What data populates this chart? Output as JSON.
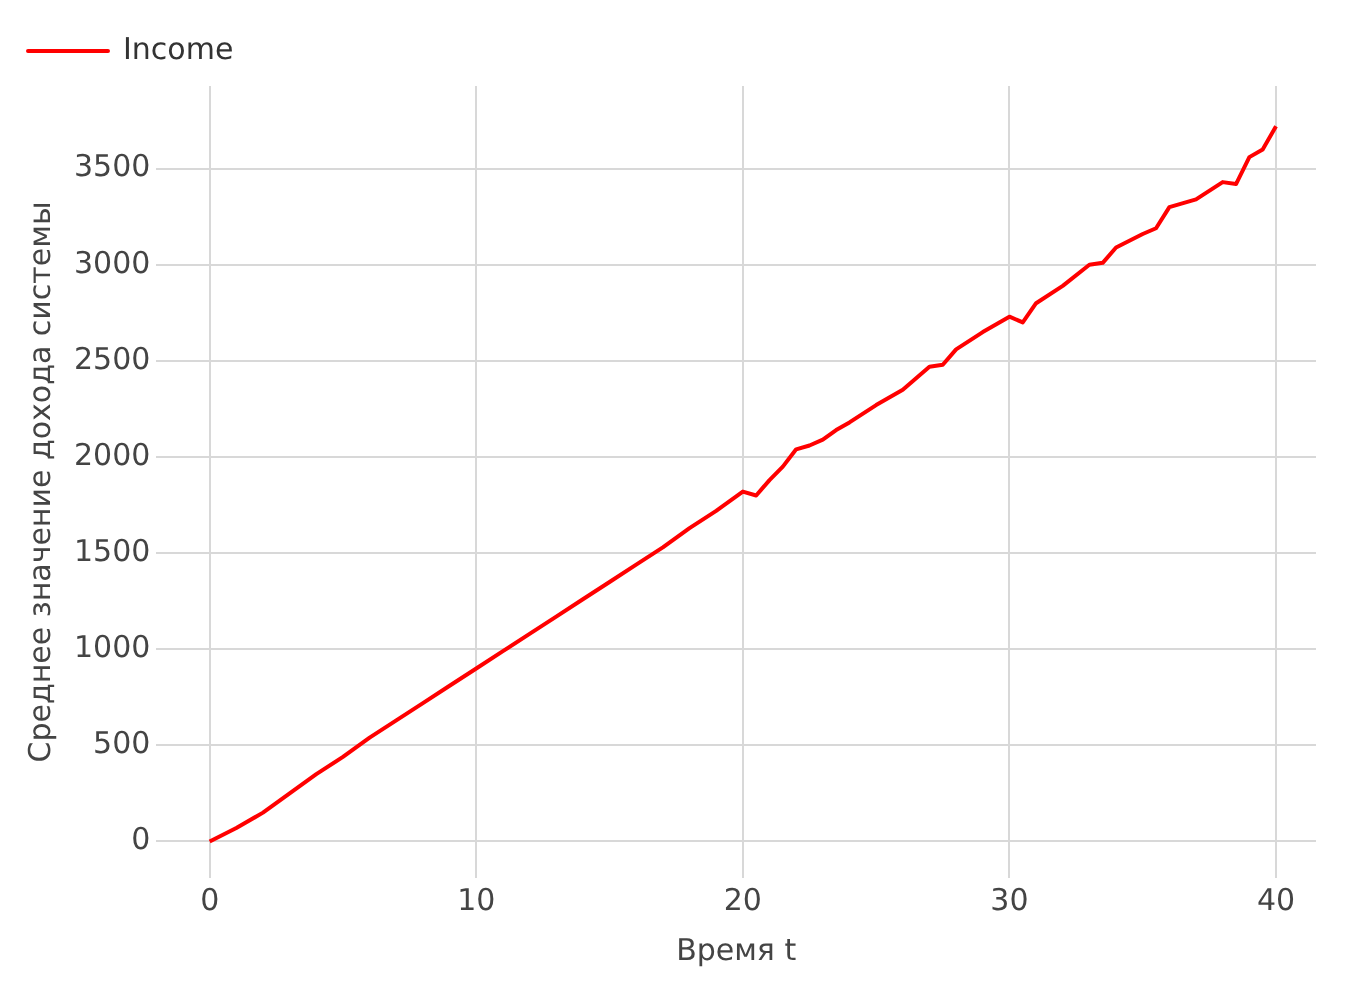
{
  "chart_data": {
    "type": "line",
    "xlabel": "Время t",
    "ylabel": "Среднее значение дохода системы",
    "legend": "top left",
    "grid": true,
    "marker": "none",
    "line_style": "solid",
    "x": [
      0,
      1,
      2,
      3,
      4,
      5,
      6,
      7,
      8,
      9,
      10,
      11,
      12,
      13,
      14,
      15,
      16,
      17,
      18,
      19,
      20,
      20.5,
      21,
      21.5,
      22,
      22.5,
      23,
      23.5,
      24,
      25,
      26,
      27,
      27.5,
      28,
      29,
      30,
      30.5,
      31,
      32,
      33,
      33.5,
      34,
      35,
      35.5,
      36,
      37,
      38,
      38.5,
      39,
      39.5,
      40
    ],
    "xlim": [
      -2,
      41.5
    ],
    "xticks": [
      0,
      10,
      20,
      30,
      40
    ],
    "ylim": [
      -190,
      3930
    ],
    "yticks": [
      0,
      500,
      1000,
      1500,
      2000,
      2500,
      3000,
      3500
    ],
    "series": [
      {
        "name": "Income",
        "color": "#ff0000",
        "values": [
          0,
          70,
          150,
          250,
          350,
          440,
          540,
          630,
          720,
          810,
          900,
          990,
          1080,
          1170,
          1260,
          1350,
          1440,
          1530,
          1630,
          1720,
          1820,
          1800,
          1880,
          1950,
          2040,
          2060,
          2090,
          2140,
          2180,
          2270,
          2350,
          2470,
          2480,
          2560,
          2650,
          2730,
          2700,
          2800,
          2890,
          3000,
          3010,
          3090,
          3160,
          3190,
          3300,
          3340,
          3430,
          3420,
          3560,
          3600,
          3720
        ]
      }
    ]
  }
}
